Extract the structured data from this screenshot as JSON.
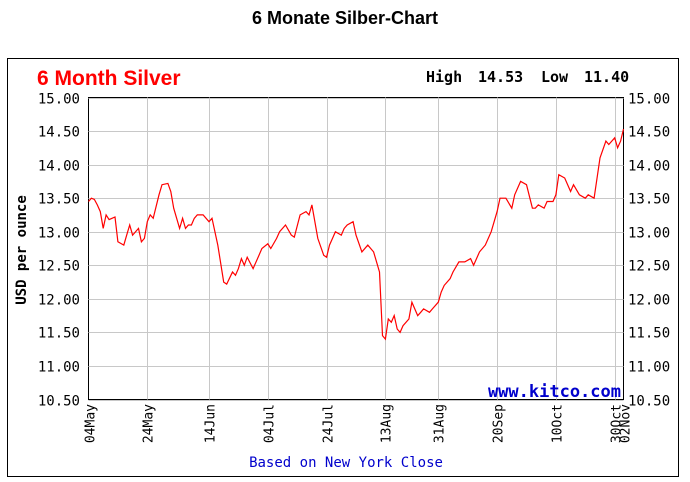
{
  "page_title": "6 Monate Silber-Chart",
  "chart_data": {
    "type": "line",
    "title": "6 Month Silver",
    "high_label": "High",
    "high_value": "14.53",
    "low_label": "Low",
    "low_value": "11.40",
    "ylabel": "USD per ounce",
    "footer": "Based on New York Close",
    "watermark": "www.kitco.com",
    "ylim": [
      10.5,
      15.0
    ],
    "yticks": [
      "15.00",
      "14.50",
      "14.00",
      "13.50",
      "13.00",
      "12.50",
      "12.00",
      "11.50",
      "11.00",
      "10.50"
    ],
    "xlim": [
      "2012-05-04",
      "2012-11-02"
    ],
    "xtick_labels": [
      "04May",
      "24May",
      "14Jun",
      "04Jul",
      "24Jul",
      "13Aug",
      "31Aug",
      "20Sep",
      "10Oct",
      "30Oct",
      "02Nov"
    ],
    "xtick_dates": [
      "2012-05-04",
      "2012-05-24",
      "2012-06-14",
      "2012-07-04",
      "2012-07-24",
      "2012-08-13",
      "2012-08-31",
      "2012-09-20",
      "2012-10-10",
      "2012-10-30",
      "2012-11-02"
    ],
    "grid": true,
    "line_color": "#ff0000",
    "title_color": "#ff0000",
    "watermark_color": "#0000cc",
    "series": [
      {
        "x": [
          "2012-05-04",
          "2012-05-05",
          "2012-05-06",
          "2012-05-07",
          "2012-05-08",
          "2012-05-09",
          "2012-05-10",
          "2012-05-11",
          "2012-05-12",
          "2012-05-13",
          "2012-05-14",
          "2012-05-16",
          "2012-05-17",
          "2012-05-18",
          "2012-05-19",
          "2012-05-21",
          "2012-05-22",
          "2012-05-23",
          "2012-05-24",
          "2012-05-25",
          "2012-05-26",
          "2012-05-28",
          "2012-05-29",
          "2012-05-31",
          "2012-06-01",
          "2012-06-02",
          "2012-06-04",
          "2012-06-05",
          "2012-06-06",
          "2012-06-07",
          "2012-06-08",
          "2012-06-09",
          "2012-06-10",
          "2012-06-12",
          "2012-06-14",
          "2012-06-15",
          "2012-06-17",
          "2012-06-19",
          "2012-06-20",
          "2012-06-22",
          "2012-06-23",
          "2012-06-24",
          "2012-06-25",
          "2012-06-26",
          "2012-06-27",
          "2012-06-29",
          "2012-07-01",
          "2012-07-02",
          "2012-07-04",
          "2012-07-05",
          "2012-07-07",
          "2012-07-08",
          "2012-07-10",
          "2012-07-12",
          "2012-07-13",
          "2012-07-15",
          "2012-07-17",
          "2012-07-18",
          "2012-07-19",
          "2012-07-21",
          "2012-07-23",
          "2012-07-24",
          "2012-07-25",
          "2012-07-26",
          "2012-07-27",
          "2012-07-29",
          "2012-07-30",
          "2012-07-31",
          "2012-08-02",
          "2012-08-03",
          "2012-08-05",
          "2012-08-07",
          "2012-08-08",
          "2012-08-09",
          "2012-08-11",
          "2012-08-12",
          "2012-08-13",
          "2012-08-14",
          "2012-08-15",
          "2012-08-16",
          "2012-08-17",
          "2012-08-18",
          "2012-08-19",
          "2012-08-21",
          "2012-08-22",
          "2012-08-24",
          "2012-08-25",
          "2012-08-26",
          "2012-08-28",
          "2012-08-29",
          "2012-08-31",
          "2012-09-01",
          "2012-09-02",
          "2012-09-04",
          "2012-09-05",
          "2012-09-07",
          "2012-09-09",
          "2012-09-11",
          "2012-09-12",
          "2012-09-14",
          "2012-09-16",
          "2012-09-18",
          "2012-09-20",
          "2012-09-21",
          "2012-09-23",
          "2012-09-25",
          "2012-09-26",
          "2012-09-28",
          "2012-09-30",
          "2012-10-02",
          "2012-10-03",
          "2012-10-04",
          "2012-10-06",
          "2012-10-07",
          "2012-10-09",
          "2012-10-10",
          "2012-10-11",
          "2012-10-13",
          "2012-10-15",
          "2012-10-16",
          "2012-10-18",
          "2012-10-20",
          "2012-10-21",
          "2012-10-23",
          "2012-10-25",
          "2012-10-27",
          "2012-10-28",
          "2012-10-30",
          "2012-10-31",
          "2012-11-01",
          "2012-11-02"
        ],
        "y": [
          13.45,
          13.5,
          13.48,
          13.4,
          13.3,
          13.05,
          13.25,
          13.18,
          13.2,
          13.22,
          12.85,
          12.8,
          12.95,
          13.1,
          12.95,
          13.05,
          12.85,
          12.9,
          13.15,
          13.25,
          13.2,
          13.55,
          13.7,
          13.72,
          13.6,
          13.35,
          13.05,
          13.2,
          13.05,
          13.1,
          13.1,
          13.2,
          13.25,
          13.25,
          13.15,
          13.2,
          12.8,
          12.25,
          12.22,
          12.4,
          12.35,
          12.45,
          12.6,
          12.5,
          12.62,
          12.45,
          12.65,
          12.75,
          12.82,
          12.75,
          12.9,
          13.0,
          13.1,
          12.95,
          12.92,
          13.25,
          13.3,
          13.25,
          13.4,
          12.9,
          12.65,
          12.62,
          12.8,
          12.9,
          13.0,
          12.95,
          13.05,
          13.1,
          13.15,
          12.95,
          12.7,
          12.8,
          12.75,
          12.7,
          12.4,
          11.45,
          11.4,
          11.7,
          11.65,
          11.75,
          11.55,
          11.5,
          11.6,
          11.7,
          11.95,
          11.75,
          11.8,
          11.85,
          11.8,
          11.85,
          11.95,
          12.1,
          12.2,
          12.3,
          12.4,
          12.55,
          12.55,
          12.6,
          12.5,
          12.7,
          12.8,
          13.0,
          13.3,
          13.5,
          13.5,
          13.35,
          13.55,
          13.75,
          13.7,
          13.35,
          13.35,
          13.4,
          13.35,
          13.45,
          13.45,
          13.55,
          13.85,
          13.8,
          13.6,
          13.7,
          13.55,
          13.5,
          13.55,
          13.5,
          14.1,
          14.35,
          14.3,
          14.4,
          14.25,
          14.35,
          14.53
        ]
      }
    ]
  }
}
